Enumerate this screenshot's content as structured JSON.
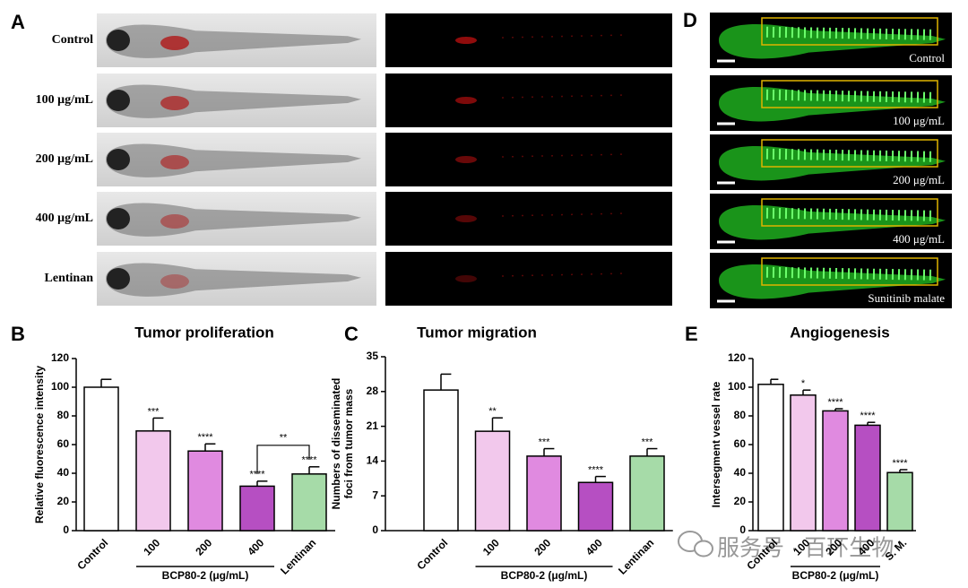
{
  "panels": {
    "A": {
      "label": "A",
      "rows": [
        "Control",
        "100 μg/mL",
        "200 μg/mL",
        "400 μg/mL",
        "Lentinan"
      ]
    },
    "D": {
      "label": "D",
      "rows": [
        "Control",
        "100 μg/mL",
        "200 μg/mL",
        "400 μg/mL",
        "Sunitinib malate"
      ]
    }
  },
  "watermark": "服务号 · 百环生物",
  "chart_data": [
    {
      "type": "bar",
      "panel": "B",
      "title": "Tumor proliferation",
      "y_label": [
        "Relative fluorescence intensity"
      ],
      "categories": [
        "Control",
        "100",
        "200",
        "400",
        "Lentinan"
      ],
      "values": [
        100,
        69.5,
        55.5,
        31,
        39.5
      ],
      "errors": [
        5.5,
        9,
        5,
        3.5,
        5
      ],
      "significance": [
        null,
        "***",
        "****",
        "****",
        "****"
      ],
      "colors": [
        "#ffffff",
        "#f2c8ec",
        "#e08ae0",
        "#b64fc2",
        "#a6dba8"
      ],
      "group_categories": [
        "100",
        "200",
        "400"
      ],
      "group_label": "BCP80-2 (μg/mL)",
      "comparisons": [
        {
          "between": [
            "400",
            "Lentinan"
          ],
          "label": "**"
        }
      ],
      "ylim": [
        0,
        120
      ],
      "yticks": [
        0,
        20,
        40,
        60,
        80,
        100,
        120
      ]
    },
    {
      "type": "bar",
      "panel": "C",
      "title": "Tumor migration",
      "y_label": [
        "Numbers of disseminated",
        "foci from tumor mass"
      ],
      "categories": [
        "Control",
        "100",
        "200",
        "400",
        "Lentinan"
      ],
      "values": [
        28.3,
        20,
        15,
        9.7,
        15
      ],
      "errors": [
        3.2,
        2.7,
        1.5,
        1.2,
        1.5
      ],
      "significance": [
        null,
        "**",
        "***",
        "****",
        "***"
      ],
      "colors": [
        "#ffffff",
        "#f2c8ec",
        "#e08ae0",
        "#b64fc2",
        "#a6dba8"
      ],
      "group_categories": [
        "100",
        "200",
        "400"
      ],
      "group_label": "BCP80-2 (μg/mL)",
      "ylim": [
        0,
        35
      ],
      "yticks": [
        0,
        7,
        14,
        21,
        28,
        35
      ]
    },
    {
      "type": "bar",
      "panel": "E",
      "title": "Angiogenesis",
      "y_label": [
        "Intersegment vessel rate"
      ],
      "categories": [
        "Control",
        "100",
        "200",
        "400",
        "S. M."
      ],
      "values": [
        102,
        94.5,
        83.5,
        73.5,
        40.5
      ],
      "errors": [
        3.5,
        3.5,
        1.5,
        2,
        2
      ],
      "significance": [
        null,
        "*",
        "****",
        "****",
        "****"
      ],
      "colors": [
        "#ffffff",
        "#f2c8ec",
        "#e08ae0",
        "#b64fc2",
        "#a6dba8"
      ],
      "group_categories": [
        "100",
        "200",
        "400"
      ],
      "group_label": "BCP80-2 (μg/mL)",
      "ylim": [
        0,
        120
      ],
      "yticks": [
        0,
        20,
        40,
        60,
        80,
        100,
        120
      ]
    }
  ]
}
